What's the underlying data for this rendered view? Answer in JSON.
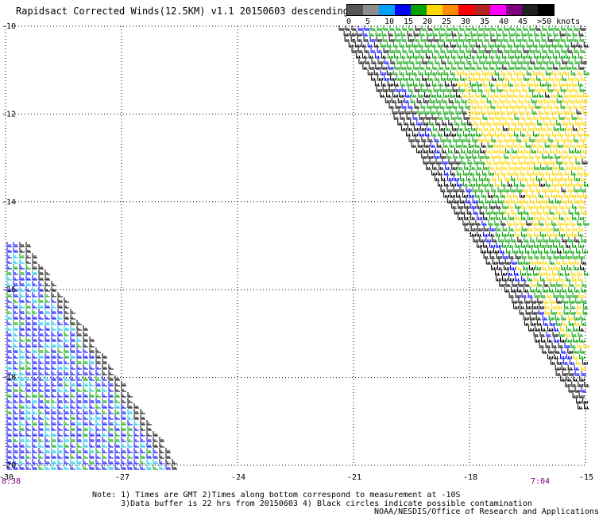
{
  "title": "Rapidsact Corrected Winds(12.5KM) v1.1 20150603 descending",
  "legend": {
    "labels": [
      "0",
      "5",
      "10",
      "15",
      "20",
      "25",
      "30",
      "35",
      "40",
      "45",
      ">50 knots"
    ],
    "colors": [
      "#555555",
      "#8c8c8c",
      "#00a0ff",
      "#0000ff",
      "#00a000",
      "#ffd700",
      "#ff8c00",
      "#ff0000",
      "#b22222",
      "#ff00ff",
      "#800080",
      "#202020",
      "#000000"
    ]
  },
  "axes": {
    "x_ticks": [
      "-30",
      "-27",
      "-24",
      "-21",
      "-18",
      "-15"
    ],
    "y_ticks": [
      "-10",
      "-12",
      "-14",
      "-16",
      "-18",
      "-20"
    ],
    "x_range": [
      -30,
      -15
    ],
    "y_range": [
      -20,
      -10
    ]
  },
  "times": {
    "left": "8:38",
    "right": "7:04"
  },
  "notes": [
    "Note: 1) Times are GMT 2)Times along bottom correspond to measurement at -10S",
    "      3)Data buffer is 22 hrs from 20150603 4) Black circles indicate possible contamination"
  ],
  "credit": "NOAA/NESDIS/Office of Research and Applications"
}
